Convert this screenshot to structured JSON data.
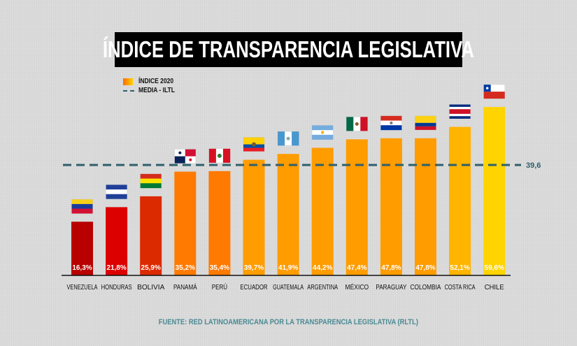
{
  "chart_data": {
    "type": "bar",
    "title": "ÍNDICE DE TRANSPARENCIA LEGISLATIVA",
    "xlabel": "",
    "ylabel": "",
    "categories": [
      "VENEZUELA",
      "HONDURAS",
      "BOLIVIA",
      "PANAMÁ",
      "PERÚ",
      "ECUADOR",
      "GUATEMALA",
      "ARGENTINA",
      "MÉXICO",
      "PARAGUAY",
      "COLOMBIA",
      "COSTA RICA",
      "CHILE"
    ],
    "series": [
      {
        "name": "ÍNDICE 2020",
        "values": [
          16.3,
          21.8,
          25.9,
          35.2,
          35.4,
          39.7,
          41.9,
          44.2,
          47.4,
          47.8,
          47.8,
          52.1,
          59.6
        ],
        "labels": [
          "16,3%",
          "21,8%",
          "25,9%",
          "35,2%",
          "35,4%",
          "39,7%",
          "41,9%",
          "44,2%",
          "47,4%",
          "47,8%",
          "47,8%",
          "52,1%",
          "59,6%"
        ],
        "colors": [
          "#b80000",
          "#dc0000",
          "#dc2a00",
          "#ff7a00",
          "#ff7a00",
          "#ff9c00",
          "#ff9c00",
          "#ff9c00",
          "#ff9c00",
          "#ff9c00",
          "#ff9c00",
          "#ffb400",
          "#ffd400"
        ]
      }
    ],
    "reference_line": {
      "name": "MEDIA - ILTL",
      "value": 39.6,
      "label": "39,6",
      "color": "#2e5f6b",
      "style": "dashed"
    },
    "flags": [
      "venezuela-flag",
      "honduras-flag",
      "bolivia-flag",
      "panama-flag",
      "peru-flag",
      "ecuador-flag",
      "guatemala-flag",
      "argentina-flag",
      "mexico-flag",
      "paraguay-flag",
      "colombia-flag",
      "costa-rica-flag",
      "chile-flag"
    ],
    "legend": [
      "ÍNDICE 2020",
      "MEDIA - ILTL"
    ],
    "legend_position": "top-left",
    "grid": false,
    "ylim": [
      0,
      60
    ]
  },
  "legend": {
    "index_label": "ÍNDICE 2020",
    "mean_label": "MEDIA - ILTL"
  },
  "source": "FUENTE: RED LATINOAMERICANA POR LA TRANSPARENCIA LEGISLATIVA (RLTL)"
}
